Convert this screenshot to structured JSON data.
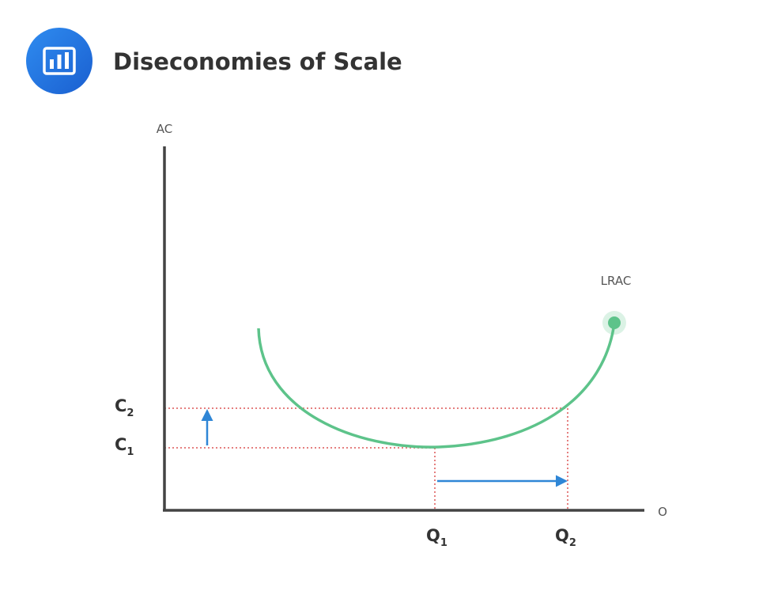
{
  "header": {
    "title": "Diseconomies of Scale"
  },
  "diagram": {
    "y_axis_label": "AC",
    "x_axis_label": "O",
    "curve_label": "LRAC",
    "cost_labels": [
      {
        "main": "C",
        "sub": "2"
      },
      {
        "main": "C",
        "sub": "1"
      }
    ],
    "quantity_labels": [
      {
        "main": "Q",
        "sub": "1"
      },
      {
        "main": "Q",
        "sub": "2"
      }
    ]
  }
}
